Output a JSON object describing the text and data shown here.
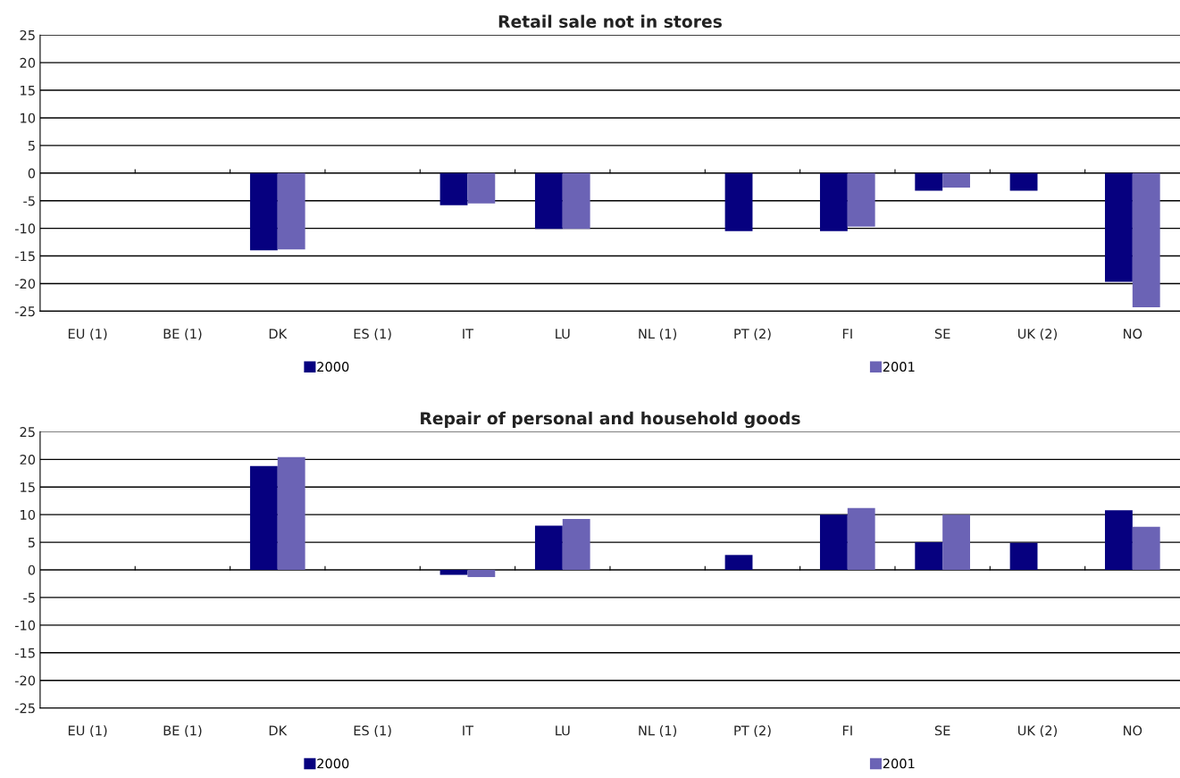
{
  "chart_data": [
    {
      "type": "bar",
      "title": "Retail sale not in stores",
      "categories": [
        "EU (1)",
        "BE (1)",
        "DK",
        "ES (1)",
        "IT",
        "LU",
        "NL (1)",
        "PT (2)",
        "FI",
        "SE",
        "UK (2)",
        "NO"
      ],
      "series": [
        {
          "name": "2000",
          "color": "#06007f",
          "values": [
            null,
            null,
            -14.0,
            null,
            -5.8,
            -10.1,
            null,
            -10.5,
            -10.5,
            -3.2,
            -3.2,
            -19.7
          ]
        },
        {
          "name": "2001",
          "color": "#6b63b5",
          "values": [
            null,
            null,
            -13.8,
            null,
            -5.5,
            -10.1,
            null,
            null,
            -9.7,
            -2.6,
            null,
            -24.3
          ]
        }
      ],
      "ylim": [
        -25,
        25
      ],
      "yticks": [
        -25,
        -20,
        -15,
        -10,
        -5,
        0,
        5,
        10,
        15,
        20,
        25
      ],
      "grid": "y",
      "legend": "bottom"
    },
    {
      "type": "bar",
      "title": "Repair of personal and household goods",
      "categories": [
        "EU (1)",
        "BE (1)",
        "DK",
        "ES (1)",
        "IT",
        "LU",
        "NL (1)",
        "PT (2)",
        "FI",
        "SE",
        "UK (2)",
        "NO"
      ],
      "series": [
        {
          "name": "2000",
          "color": "#06007f",
          "values": [
            null,
            null,
            18.8,
            null,
            -0.9,
            8.0,
            null,
            2.7,
            10.0,
            5.0,
            4.9,
            10.8
          ]
        },
        {
          "name": "2001",
          "color": "#6b63b5",
          "values": [
            null,
            null,
            20.4,
            null,
            -1.3,
            9.2,
            null,
            null,
            11.2,
            10.0,
            null,
            7.8
          ]
        }
      ],
      "ylim": [
        -25,
        25
      ],
      "yticks": [
        -25,
        -20,
        -15,
        -10,
        -5,
        0,
        5,
        10,
        15,
        20,
        25
      ],
      "grid": "y",
      "legend": "bottom"
    }
  ]
}
